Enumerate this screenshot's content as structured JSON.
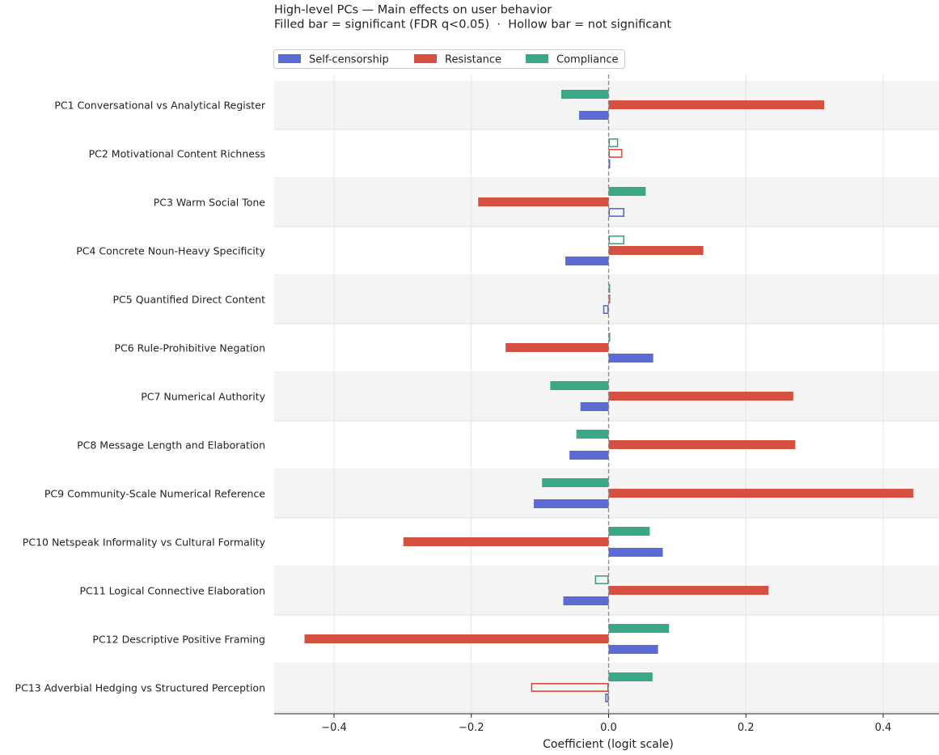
{
  "chart_data": {
    "type": "bar",
    "orientation": "horizontal",
    "title": "High-level PCs — Main effects on user behavior",
    "subtitle": "Filled bar = significant (FDR q<0.05)  ·  Hollow bar = not significant",
    "xlabel": "Coefficient (logit scale)",
    "xlim": [
      -0.485,
      0.48
    ],
    "xticks": [
      -0.4,
      -0.2,
      0.0,
      0.2,
      0.4
    ],
    "xtick_labels": [
      "−0.4",
      "−0.2",
      "0.0",
      "0.2",
      "0.4"
    ],
    "grid": true,
    "legend_position": "top-left",
    "categories": [
      "PC1  Conversational vs Analytical Register",
      "PC2  Motivational Content Richness",
      "PC3  Warm Social Tone",
      "PC4  Concrete Noun-Heavy Specificity",
      "PC5  Quantified Direct Content",
      "PC6  Rule-Prohibitive Negation",
      "PC7  Numerical Authority",
      "PC8  Message Length and Elaboration",
      "PC9  Community-Scale Numerical Reference",
      "PC10  Netspeak Informality vs Cultural Formality",
      "PC11  Logical Connective Elaboration",
      "PC12  Descriptive Positive Framing",
      "PC13  Adverbial Hedging vs Structured Perception"
    ],
    "series": [
      {
        "name": "Compliance",
        "color": "#3aa886",
        "values": [
          -0.069,
          0.014,
          0.054,
          0.023,
          0.002,
          0.0,
          -0.085,
          -0.047,
          -0.097,
          0.06,
          -0.02,
          0.088,
          0.064
        ],
        "significant": [
          true,
          false,
          true,
          false,
          true,
          true,
          true,
          true,
          true,
          true,
          false,
          true,
          true
        ]
      },
      {
        "name": "Resistance",
        "color": "#d45040",
        "values": [
          0.314,
          0.02,
          -0.19,
          0.138,
          0.002,
          -0.15,
          0.269,
          0.272,
          0.444,
          -0.299,
          0.233,
          -0.443,
          -0.113
        ],
        "significant": [
          true,
          false,
          true,
          true,
          true,
          true,
          true,
          true,
          true,
          true,
          true,
          true,
          false
        ]
      },
      {
        "name": "Self-censorship",
        "color": "#5b6bd6",
        "values": [
          -0.043,
          0.002,
          0.023,
          -0.063,
          -0.008,
          0.065,
          -0.041,
          -0.057,
          -0.109,
          0.079,
          -0.066,
          0.072,
          -0.005
        ],
        "significant": [
          true,
          true,
          false,
          true,
          false,
          true,
          true,
          true,
          true,
          true,
          true,
          true,
          false
        ]
      }
    ],
    "legend": [
      {
        "name": "Self-censorship",
        "color": "#5b6bd6"
      },
      {
        "name": "Resistance",
        "color": "#d45040"
      },
      {
        "name": "Compliance",
        "color": "#3aa886"
      }
    ],
    "zero_line_color": "#888888",
    "band_color": "#f4f4f4"
  }
}
